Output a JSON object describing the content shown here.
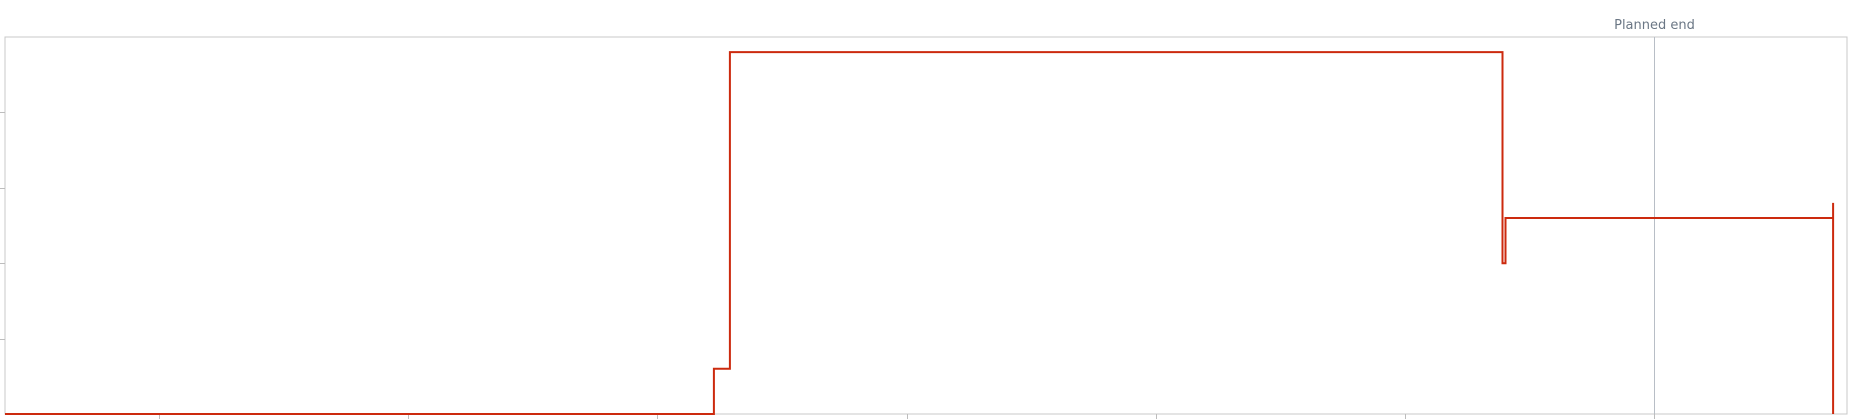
{
  "chart_data": {
    "type": "line",
    "interpolation": "step",
    "title": "",
    "xlabel": "",
    "ylabel": "",
    "xlim": [
      0,
      1850
    ],
    "ylim": [
      0,
      100
    ],
    "grid": false,
    "series": [
      {
        "color": "#cc2a0e",
        "points": [
          [
            0,
            0
          ],
          [
            712,
            0
          ],
          [
            712,
            12
          ],
          [
            728,
            12
          ],
          [
            728,
            96
          ],
          [
            1504,
            96
          ],
          [
            1504,
            40
          ],
          [
            1507,
            40
          ],
          [
            1507,
            52
          ],
          [
            1836,
            52
          ],
          [
            1836,
            56
          ],
          [
            1836,
            0
          ]
        ]
      }
    ],
    "x_ticks": [
      155,
      405,
      655,
      906,
      1156,
      1406,
      1656
    ],
    "y_ticks": [
      20,
      40,
      60,
      80
    ],
    "markers": [
      {
        "label": "Planned end",
        "x": 1656,
        "color": "#b8bec6"
      }
    ]
  },
  "colors": {
    "frame": "#c8c8c8",
    "axis": "#bdbdbd",
    "tick": "#bdbdbd",
    "label": "#6b7785"
  }
}
